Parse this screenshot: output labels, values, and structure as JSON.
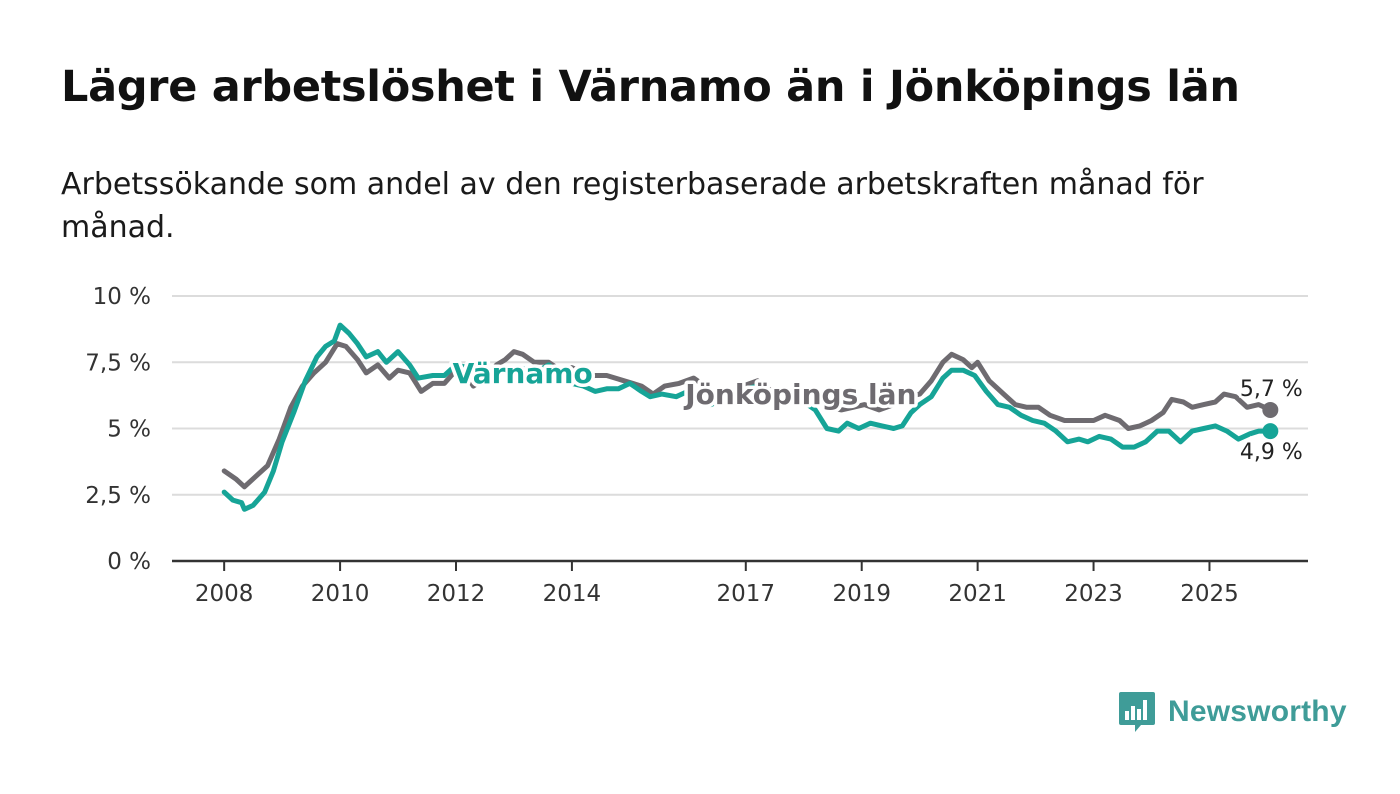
{
  "header": {
    "title": "Lägre arbetslöshet i Värnamo än i Jönköpings län",
    "subtitle": "Arbetssökande som andel av den registerbaserade arbetskraften månad för månad."
  },
  "brand": {
    "name": "Newsworthy",
    "icon": "newsworthy-logo-icon"
  },
  "colors": {
    "varnamo": "#16a497",
    "lan": "#6e6b70",
    "grid": "#dcdcdc",
    "axis": "#333333",
    "text": "#333333"
  },
  "chart_data": {
    "type": "line",
    "title": "Lägre arbetslöshet i Värnamo än i Jönköpings län",
    "subtitle": "Arbetssökande som andel av den registerbaserade arbetskraften månad för månad.",
    "xlabel": "",
    "ylabel": "",
    "x_range": [
      2007.1,
      2026.7
    ],
    "ylim": [
      0,
      10
    ],
    "y_ticks": [
      {
        "value": 0,
        "label": "0 %"
      },
      {
        "value": 2.5,
        "label": "2,5 %"
      },
      {
        "value": 5,
        "label": "5 %"
      },
      {
        "value": 7.5,
        "label": "7,5 %"
      },
      {
        "value": 10,
        "label": "10 %"
      }
    ],
    "x_ticks": [
      {
        "value": 2008,
        "label": "2008"
      },
      {
        "value": 2010,
        "label": "2010"
      },
      {
        "value": 2012,
        "label": "2012"
      },
      {
        "value": 2014,
        "label": "2014"
      },
      {
        "value": 2017,
        "label": "2017"
      },
      {
        "value": 2019,
        "label": "2019"
      },
      {
        "value": 2021,
        "label": "2021"
      },
      {
        "value": 2023,
        "label": "2023"
      },
      {
        "value": 2025,
        "label": "2025"
      }
    ],
    "grid": true,
    "series": [
      {
        "name": "Jönköpings län",
        "label": "Jönköpings län",
        "label_at": [
          2017.95,
          6.3
        ],
        "end_label": "5,7 %",
        "points": [
          [
            2008.0,
            3.4
          ],
          [
            2008.2,
            3.1
          ],
          [
            2008.35,
            2.8
          ],
          [
            2008.55,
            3.2
          ],
          [
            2008.75,
            3.6
          ],
          [
            2008.95,
            4.6
          ],
          [
            2009.15,
            5.8
          ],
          [
            2009.35,
            6.6
          ],
          [
            2009.55,
            7.1
          ],
          [
            2009.75,
            7.5
          ],
          [
            2009.95,
            8.2
          ],
          [
            2010.1,
            8.1
          ],
          [
            2010.3,
            7.6
          ],
          [
            2010.45,
            7.1
          ],
          [
            2010.65,
            7.4
          ],
          [
            2010.85,
            6.9
          ],
          [
            2011.0,
            7.2
          ],
          [
            2011.2,
            7.1
          ],
          [
            2011.4,
            6.4
          ],
          [
            2011.6,
            6.7
          ],
          [
            2011.8,
            6.7
          ],
          [
            2012.0,
            7.2
          ],
          [
            2012.15,
            7.1
          ],
          [
            2012.3,
            6.6
          ],
          [
            2012.5,
            6.9
          ],
          [
            2012.7,
            7.4
          ],
          [
            2012.85,
            7.6
          ],
          [
            2013.0,
            7.9
          ],
          [
            2013.15,
            7.8
          ],
          [
            2013.35,
            7.5
          ],
          [
            2013.6,
            7.5
          ],
          [
            2013.8,
            7.2
          ],
          [
            2014.0,
            7.3
          ],
          [
            2014.3,
            7.0
          ],
          [
            2014.6,
            7.0
          ],
          [
            2014.9,
            6.8
          ],
          [
            2015.2,
            6.6
          ],
          [
            2015.4,
            6.3
          ],
          [
            2015.6,
            6.6
          ],
          [
            2015.85,
            6.7
          ],
          [
            2016.1,
            6.9
          ],
          [
            2016.3,
            6.6
          ],
          [
            2016.5,
            6.0
          ],
          [
            2016.7,
            6.3
          ],
          [
            2016.95,
            6.6
          ],
          [
            2017.2,
            6.8
          ],
          [
            2017.45,
            6.4
          ],
          [
            2017.7,
            6.1
          ],
          [
            2017.95,
            6.3
          ],
          [
            2018.2,
            6.2
          ],
          [
            2018.45,
            5.8
          ],
          [
            2018.65,
            5.7
          ],
          [
            2018.85,
            5.8
          ],
          [
            2019.05,
            5.9
          ],
          [
            2019.3,
            5.7
          ],
          [
            2019.55,
            5.9
          ],
          [
            2019.8,
            6.2
          ],
          [
            2020.0,
            6.3
          ],
          [
            2020.2,
            6.8
          ],
          [
            2020.4,
            7.5
          ],
          [
            2020.55,
            7.8
          ],
          [
            2020.75,
            7.6
          ],
          [
            2020.9,
            7.3
          ],
          [
            2021.0,
            7.5
          ],
          [
            2021.2,
            6.8
          ],
          [
            2021.45,
            6.3
          ],
          [
            2021.65,
            5.9
          ],
          [
            2021.85,
            5.8
          ],
          [
            2022.05,
            5.8
          ],
          [
            2022.25,
            5.5
          ],
          [
            2022.5,
            5.3
          ],
          [
            2022.75,
            5.3
          ],
          [
            2023.0,
            5.3
          ],
          [
            2023.2,
            5.5
          ],
          [
            2023.45,
            5.3
          ],
          [
            2023.6,
            5.0
          ],
          [
            2023.8,
            5.1
          ],
          [
            2024.0,
            5.3
          ],
          [
            2024.2,
            5.6
          ],
          [
            2024.35,
            6.1
          ],
          [
            2024.55,
            6.0
          ],
          [
            2024.7,
            5.8
          ],
          [
            2024.9,
            5.9
          ],
          [
            2025.1,
            6.0
          ],
          [
            2025.25,
            6.3
          ],
          [
            2025.45,
            6.2
          ],
          [
            2025.65,
            5.8
          ],
          [
            2025.85,
            5.9
          ],
          [
            2026.05,
            5.7
          ]
        ]
      },
      {
        "name": "Värnamo",
        "label": "Värnamo",
        "label_at": [
          2013.15,
          7.1
        ],
        "end_label": "4,9 %",
        "points": [
          [
            2008.0,
            2.6
          ],
          [
            2008.15,
            2.3
          ],
          [
            2008.3,
            2.2
          ],
          [
            2008.35,
            1.95
          ],
          [
            2008.5,
            2.1
          ],
          [
            2008.7,
            2.6
          ],
          [
            2008.85,
            3.4
          ],
          [
            2009.0,
            4.5
          ],
          [
            2009.2,
            5.6
          ],
          [
            2009.4,
            6.8
          ],
          [
            2009.6,
            7.7
          ],
          [
            2009.75,
            8.1
          ],
          [
            2009.9,
            8.3
          ],
          [
            2010.0,
            8.9
          ],
          [
            2010.15,
            8.6
          ],
          [
            2010.3,
            8.2
          ],
          [
            2010.45,
            7.7
          ],
          [
            2010.65,
            7.9
          ],
          [
            2010.8,
            7.5
          ],
          [
            2011.0,
            7.9
          ],
          [
            2011.2,
            7.4
          ],
          [
            2011.35,
            6.9
          ],
          [
            2011.6,
            7.0
          ],
          [
            2011.8,
            7.0
          ],
          [
            2012.0,
            7.4
          ],
          [
            2012.2,
            7.3
          ],
          [
            2012.4,
            6.9
          ],
          [
            2012.6,
            7.1
          ],
          [
            2012.85,
            7.2
          ],
          [
            2013.1,
            7.3
          ],
          [
            2013.35,
            7.1
          ],
          [
            2013.6,
            7.4
          ],
          [
            2013.8,
            7.1
          ],
          [
            2014.0,
            6.7
          ],
          [
            2014.2,
            6.6
          ],
          [
            2014.4,
            6.4
          ],
          [
            2014.6,
            6.5
          ],
          [
            2014.8,
            6.5
          ],
          [
            2015.0,
            6.7
          ],
          [
            2015.2,
            6.4
          ],
          [
            2015.35,
            6.2
          ],
          [
            2015.55,
            6.3
          ],
          [
            2015.8,
            6.2
          ],
          [
            2016.0,
            6.4
          ],
          [
            2016.2,
            6.1
          ],
          [
            2016.4,
            5.9
          ],
          [
            2016.6,
            6.1
          ],
          [
            2016.8,
            6.4
          ],
          [
            2017.0,
            6.5
          ],
          [
            2017.2,
            6.6
          ],
          [
            2017.4,
            6.3
          ],
          [
            2017.6,
            5.9
          ],
          [
            2017.8,
            6.0
          ],
          [
            2018.0,
            6.0
          ],
          [
            2018.2,
            5.7
          ],
          [
            2018.4,
            5.0
          ],
          [
            2018.6,
            4.9
          ],
          [
            2018.75,
            5.2
          ],
          [
            2018.95,
            5.0
          ],
          [
            2019.15,
            5.2
          ],
          [
            2019.35,
            5.1
          ],
          [
            2019.55,
            5.0
          ],
          [
            2019.7,
            5.1
          ],
          [
            2019.85,
            5.6
          ],
          [
            2020.0,
            5.9
          ],
          [
            2020.2,
            6.2
          ],
          [
            2020.4,
            6.9
          ],
          [
            2020.55,
            7.2
          ],
          [
            2020.75,
            7.2
          ],
          [
            2020.95,
            7.0
          ],
          [
            2021.15,
            6.4
          ],
          [
            2021.35,
            5.9
          ],
          [
            2021.55,
            5.8
          ],
          [
            2021.75,
            5.5
          ],
          [
            2021.95,
            5.3
          ],
          [
            2022.15,
            5.2
          ],
          [
            2022.35,
            4.9
          ],
          [
            2022.55,
            4.5
          ],
          [
            2022.75,
            4.6
          ],
          [
            2022.9,
            4.5
          ],
          [
            2023.1,
            4.7
          ],
          [
            2023.3,
            4.6
          ],
          [
            2023.5,
            4.3
          ],
          [
            2023.7,
            4.3
          ],
          [
            2023.9,
            4.5
          ],
          [
            2024.1,
            4.9
          ],
          [
            2024.3,
            4.9
          ],
          [
            2024.5,
            4.5
          ],
          [
            2024.7,
            4.9
          ],
          [
            2024.9,
            5.0
          ],
          [
            2025.1,
            5.1
          ],
          [
            2025.3,
            4.9
          ],
          [
            2025.5,
            4.6
          ],
          [
            2025.7,
            4.8
          ],
          [
            2025.85,
            4.9
          ],
          [
            2026.05,
            4.9
          ]
        ]
      }
    ]
  }
}
